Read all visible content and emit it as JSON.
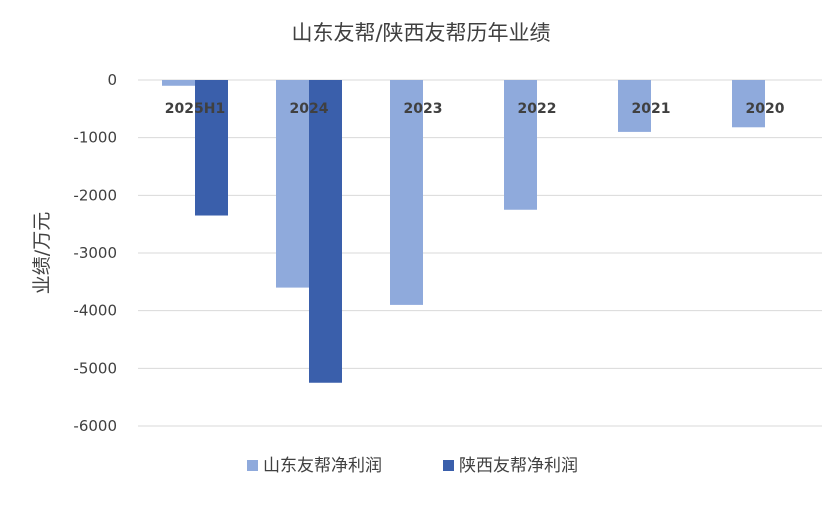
{
  "chart_data": {
    "type": "bar",
    "title": "山东友帮/陕西友帮历年业绩",
    "ylabel": "业绩/万元",
    "xlabel": "",
    "categories": [
      "2025H1",
      "2024",
      "2023",
      "2022",
      "2021",
      "2020"
    ],
    "series": [
      {
        "name": "山东友帮净利润",
        "color": "#8faadc",
        "values": [
          -100,
          -3600,
          -3900,
          -2250,
          -900,
          -820
        ]
      },
      {
        "name": "陕西友帮净利润",
        "color": "#3a5fab",
        "values": [
          -2350,
          -5250,
          null,
          null,
          null,
          null
        ]
      }
    ],
    "ylim": [
      -6000,
      0
    ],
    "yticks": [
      0,
      -1000,
      -2000,
      -3000,
      -4000,
      -5000,
      -6000
    ],
    "ytick_labels": [
      "0",
      "-1000",
      "-2000",
      "-3000",
      "-4000",
      "-5000",
      "-6000"
    ],
    "grid": true,
    "legend_position": "bottom"
  }
}
